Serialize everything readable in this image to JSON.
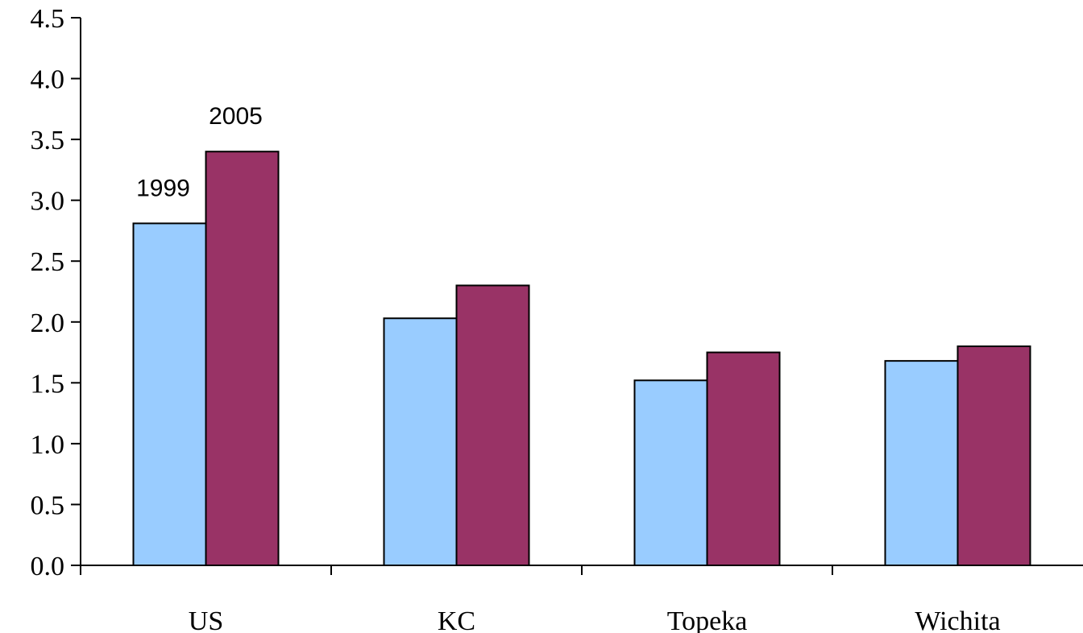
{
  "chart_data": {
    "type": "bar",
    "title": "",
    "xlabel": "",
    "ylabel": "",
    "categories": [
      "US",
      "KC",
      "Topeka",
      "Wichita"
    ],
    "series": [
      {
        "name": "1999",
        "color": "#99ccff",
        "values": [
          2.81,
          2.03,
          1.52,
          1.68
        ]
      },
      {
        "name": "2005",
        "color": "#993366",
        "values": [
          3.4,
          2.3,
          1.75,
          1.8
        ]
      }
    ],
    "ylim": [
      0,
      4.5
    ],
    "yticks": [
      "0.0",
      "0.5",
      "1.0",
      "1.5",
      "2.0",
      "2.5",
      "3.0",
      "3.5",
      "4.0",
      "4.5"
    ],
    "grid": false,
    "legend": "none"
  }
}
